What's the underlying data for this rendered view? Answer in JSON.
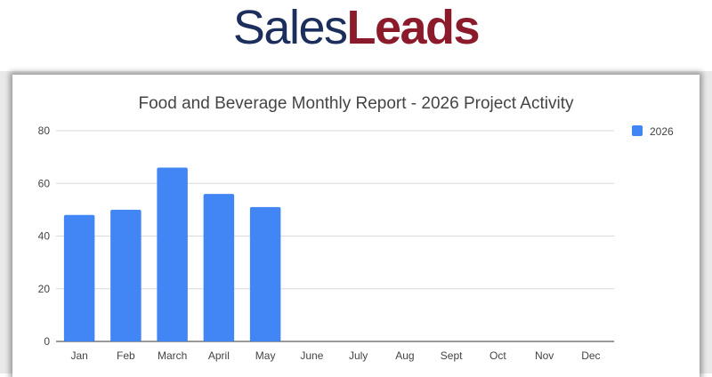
{
  "logo": {
    "part1": "Sales",
    "part2": "Leads"
  },
  "colors": {
    "bar": "#4285f4",
    "logo_blue": "#1b2e5c",
    "logo_red": "#8b1a2b"
  },
  "chart_data": {
    "type": "bar",
    "title": "Food and Beverage Monthly Report - 2026 Project Activity",
    "categories": [
      "Jan",
      "Feb",
      "March",
      "April",
      "May",
      "June",
      "July",
      "Aug",
      "Sept",
      "Oct",
      "Nov",
      "Dec"
    ],
    "series": [
      {
        "name": "2026",
        "values": [
          48,
          50,
          66,
          56,
          51,
          null,
          null,
          null,
          null,
          null,
          null,
          null
        ]
      }
    ],
    "yticks": [
      "0",
      "20",
      "40",
      "60",
      "80"
    ],
    "ylim": [
      0,
      80
    ],
    "grid": true,
    "legend": "right"
  }
}
